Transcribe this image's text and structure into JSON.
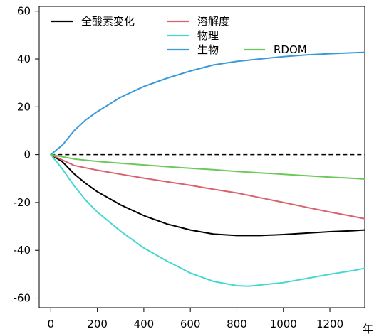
{
  "chart_data": {
    "type": "line",
    "title": "",
    "xlabel": "",
    "ylabel": "",
    "x_unit_label": "年",
    "xlim": [
      -50,
      1350
    ],
    "ylim": [
      -64,
      62
    ],
    "x_ticks": [
      0,
      200,
      400,
      600,
      800,
      1000,
      1200
    ],
    "y_ticks": [
      -60,
      -40,
      -20,
      0,
      20,
      40,
      60
    ],
    "grid": false,
    "legend": "top-left",
    "zero_line": {
      "y": 0,
      "style": "dashed",
      "color": "#000000"
    },
    "series": [
      {
        "name": "全酸素変化",
        "color": "#000000",
        "x": [
          0,
          50,
          100,
          150,
          200,
          300,
          400,
          500,
          600,
          700,
          800,
          900,
          1000,
          1100,
          1200,
          1300,
          1350
        ],
        "y": [
          0,
          -3,
          -8,
          -12,
          -15.5,
          -21,
          -25.5,
          -29,
          -31.5,
          -33.2,
          -33.8,
          -33.8,
          -33.4,
          -32.8,
          -32.2,
          -31.8,
          -31.5
        ]
      },
      {
        "name": "溶解度",
        "color": "#d9626e",
        "x": [
          0,
          100,
          200,
          300,
          400,
          500,
          600,
          700,
          800,
          900,
          1000,
          1100,
          1200,
          1300,
          1350
        ],
        "y": [
          0,
          -4.5,
          -6.5,
          -8.2,
          -9.8,
          -11.3,
          -12.8,
          -14.5,
          -16,
          -18,
          -20,
          -22,
          -24,
          -25.8,
          -26.8
        ]
      },
      {
        "name": "物理",
        "color": "#44d8d0",
        "x": [
          0,
          50,
          100,
          150,
          200,
          300,
          400,
          500,
          600,
          700,
          800,
          850,
          900,
          1000,
          1100,
          1200,
          1300,
          1350
        ],
        "y": [
          0,
          -6,
          -13,
          -19,
          -24,
          -32,
          -39,
          -44.5,
          -49.5,
          -53,
          -54.8,
          -55,
          -54.5,
          -53.5,
          -51.8,
          -50,
          -48.5,
          -47.5
        ]
      },
      {
        "name": "生物",
        "color": "#3a9ad9",
        "x": [
          0,
          50,
          100,
          150,
          200,
          300,
          400,
          500,
          600,
          700,
          800,
          900,
          1000,
          1100,
          1200,
          1300,
          1350
        ],
        "y": [
          0,
          4,
          10,
          14.5,
          18,
          24,
          28.5,
          32,
          35,
          37.5,
          39,
          40,
          41,
          41.7,
          42.2,
          42.6,
          42.8
        ]
      },
      {
        "name": "RDOM",
        "color": "#6dc85a",
        "x": [
          0,
          100,
          200,
          300,
          400,
          500,
          600,
          700,
          800,
          900,
          1000,
          1100,
          1200,
          1300,
          1350
        ],
        "y": [
          0,
          -1.8,
          -2.8,
          -3.6,
          -4.3,
          -5,
          -5.7,
          -6.3,
          -7,
          -7.6,
          -8.2,
          -8.8,
          -9.4,
          -9.9,
          -10.2
        ]
      }
    ]
  }
}
